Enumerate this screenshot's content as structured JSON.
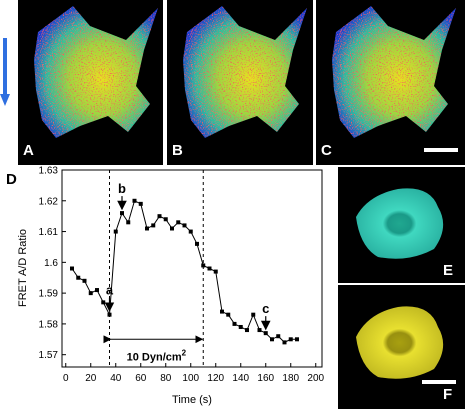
{
  "panels": [
    {
      "label": "A"
    },
    {
      "label": "B"
    },
    {
      "label": "C"
    },
    {
      "label": "E"
    },
    {
      "label": "F"
    }
  ],
  "chart_data": {
    "type": "line",
    "panel_label": "D",
    "x_label": "Time (s)",
    "y_label": "FRET A/D Ratio",
    "x": [
      5,
      10,
      15,
      20,
      25,
      30,
      35,
      40,
      45,
      50,
      55,
      60,
      65,
      70,
      75,
      80,
      85,
      90,
      95,
      100,
      105,
      110,
      115,
      120,
      125,
      130,
      135,
      140,
      145,
      150,
      155,
      160,
      165,
      170,
      175,
      180,
      185
    ],
    "series": [
      {
        "color": "#000000",
        "values": [
          1.598,
          1.595,
          1.594,
          1.59,
          1.591,
          1.587,
          1.583,
          1.61,
          1.616,
          1.613,
          1.62,
          1.619,
          1.611,
          1.612,
          1.615,
          1.614,
          1.611,
          1.613,
          1.612,
          1.61,
          1.606,
          1.599,
          1.598,
          1.597,
          1.584,
          1.583,
          1.58,
          1.579,
          1.578,
          1.583,
          1.578,
          1.577,
          1.575,
          1.576,
          1.574,
          1.575,
          1.575
        ]
      }
    ],
    "xlim": [
      -3,
      205
    ],
    "ylim": [
      1.566,
      1.63
    ],
    "xticks": [
      0,
      20,
      40,
      60,
      80,
      100,
      120,
      140,
      160,
      180,
      200
    ],
    "yticks": [
      1.57,
      1.58,
      1.59,
      1.6,
      1.61,
      1.62,
      1.63
    ],
    "annotations": [
      {
        "label": "a",
        "x": 35,
        "y": 1.583
      },
      {
        "label": "b",
        "x": 45,
        "y": 1.616
      },
      {
        "label": "c",
        "x": 160,
        "y": 1.577
      }
    ],
    "shear_interval": [
      35,
      110
    ],
    "shear_label": "10 Dyn/cm",
    "shear_label_sup": "2",
    "shear_label_y": 1.575
  }
}
